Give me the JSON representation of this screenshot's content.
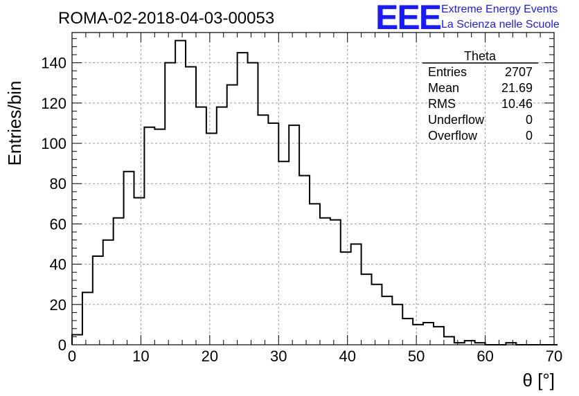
{
  "header": {
    "run_title": "ROMA-02-2018-04-03-00053",
    "logo_mark": "EEE",
    "logo_line1": "Extreme Energy Events",
    "logo_line2": "La Scienza nelle Scuole"
  },
  "stats": {
    "name": "Theta",
    "rows": [
      {
        "label": "Entries",
        "value": "2707"
      },
      {
        "label": "Mean",
        "value": "21.69"
      },
      {
        "label": "RMS",
        "value": "10.46"
      },
      {
        "label": "Underflow",
        "value": "0"
      },
      {
        "label": "Overflow",
        "value": "0"
      }
    ]
  },
  "chart_data": {
    "type": "bar",
    "title": "ROMA-02-2018-04-03-00053",
    "xlabel": "θ [°]",
    "ylabel": "Entries/bin",
    "xlim": [
      0,
      70
    ],
    "ylim": [
      0,
      155
    ],
    "bin_width": 1.5,
    "x_ticks": [
      0,
      10,
      20,
      30,
      40,
      50,
      60,
      70
    ],
    "y_ticks": [
      0,
      20,
      40,
      60,
      80,
      100,
      120,
      140
    ],
    "grid": true,
    "values": [
      5,
      26,
      44,
      52,
      63,
      86,
      73,
      108,
      107,
      140,
      151,
      138,
      118,
      105,
      118,
      129,
      145,
      140,
      114,
      110,
      91,
      109,
      84,
      70,
      63,
      62,
      46,
      50,
      35,
      30,
      24,
      20,
      13,
      10,
      11,
      9,
      4,
      1,
      2,
      1,
      0,
      0,
      1,
      0,
      0,
      0,
      0
    ]
  }
}
